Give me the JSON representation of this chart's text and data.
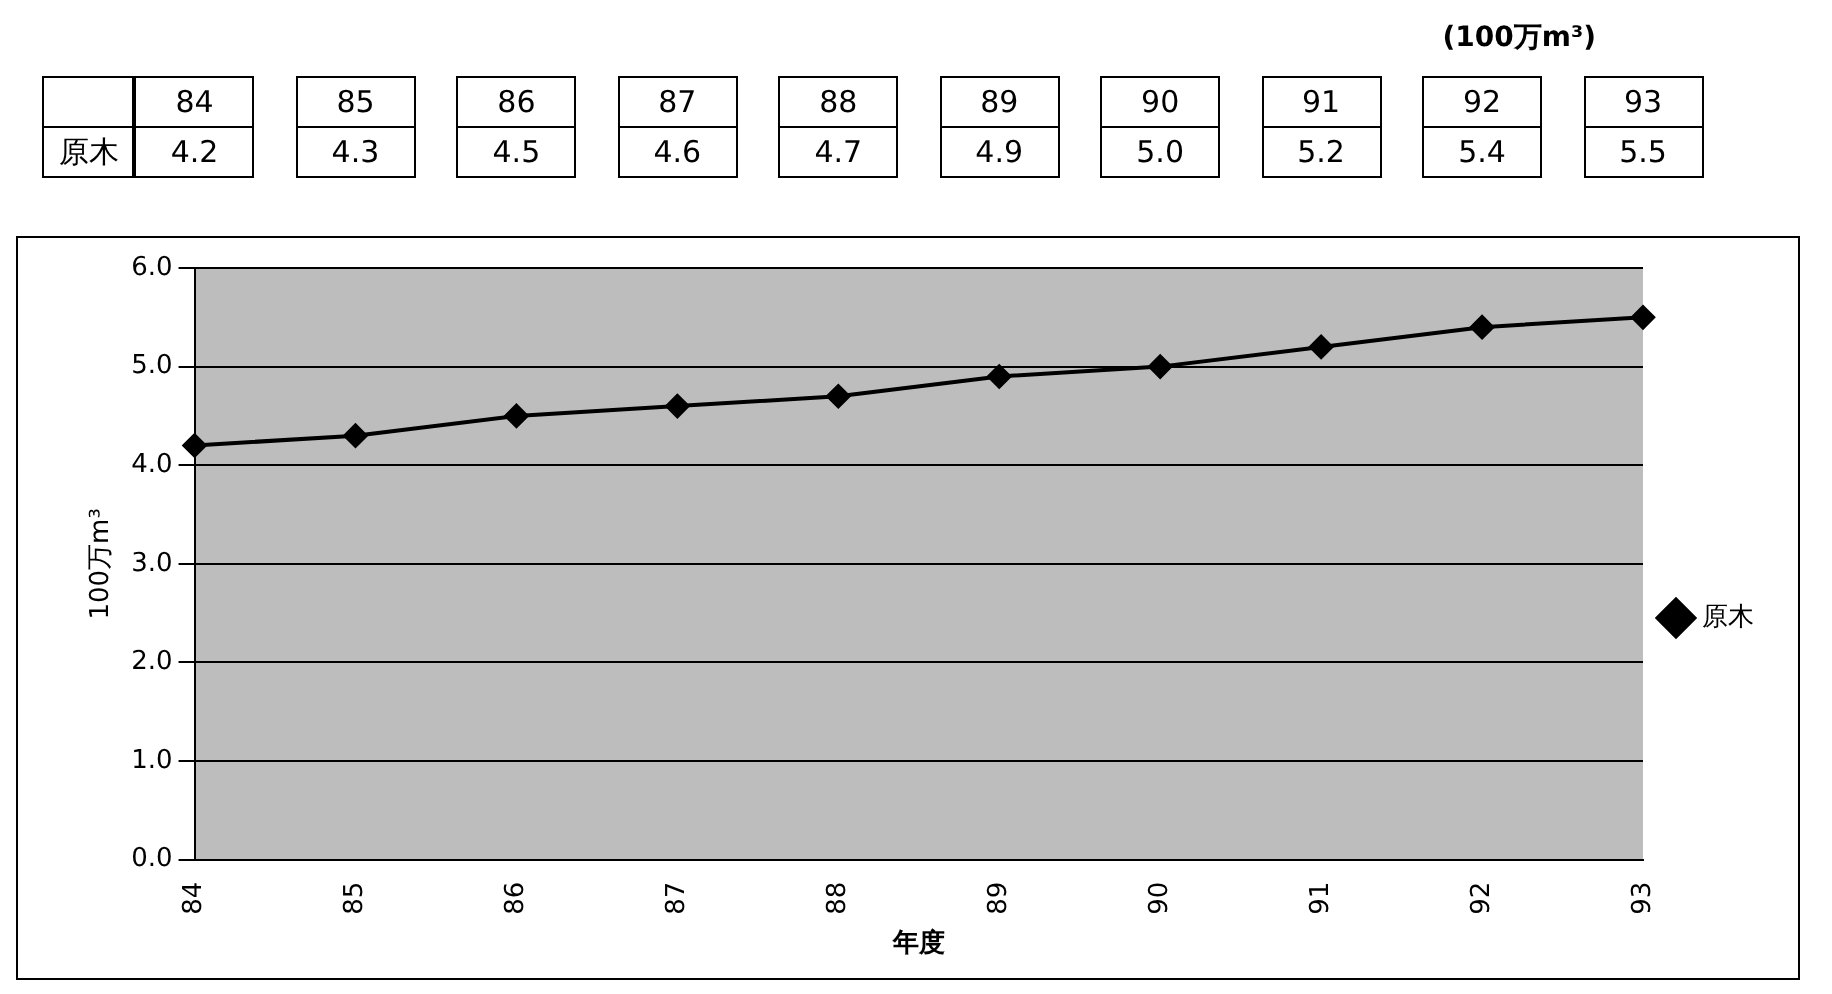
{
  "chart_data": {
    "type": "line",
    "xlabel": "年度",
    "ylabel": "100万m³",
    "annotations": [
      "(100万m³)"
    ],
    "categories": [
      "84",
      "85",
      "86",
      "87",
      "88",
      "89",
      "90",
      "91",
      "92",
      "93"
    ],
    "series": [
      {
        "name": "原木",
        "color": "#000000",
        "values": [
          4.2,
          4.3,
          4.5,
          4.6,
          4.7,
          4.9,
          5.0,
          5.2,
          5.4,
          5.5
        ],
        "value_labels": [
          "4.2",
          "4.3",
          "4.5",
          "4.6",
          "4.7",
          "4.9",
          "5.0",
          "5.2",
          "5.4",
          "5.5"
        ]
      }
    ],
    "ylim": [
      0,
      6
    ],
    "yticks": [
      {
        "value": 0,
        "label": "0.0"
      },
      {
        "value": 1,
        "label": "1.0"
      },
      {
        "value": 2,
        "label": "2.0"
      },
      {
        "value": 3,
        "label": "3.0"
      },
      {
        "value": 4,
        "label": "4.0"
      },
      {
        "value": 5,
        "label": "5.0"
      },
      {
        "value": 6,
        "label": "6.0"
      }
    ],
    "grid": "y",
    "legend": "right",
    "marker": "diamond",
    "line_style": "solid"
  }
}
